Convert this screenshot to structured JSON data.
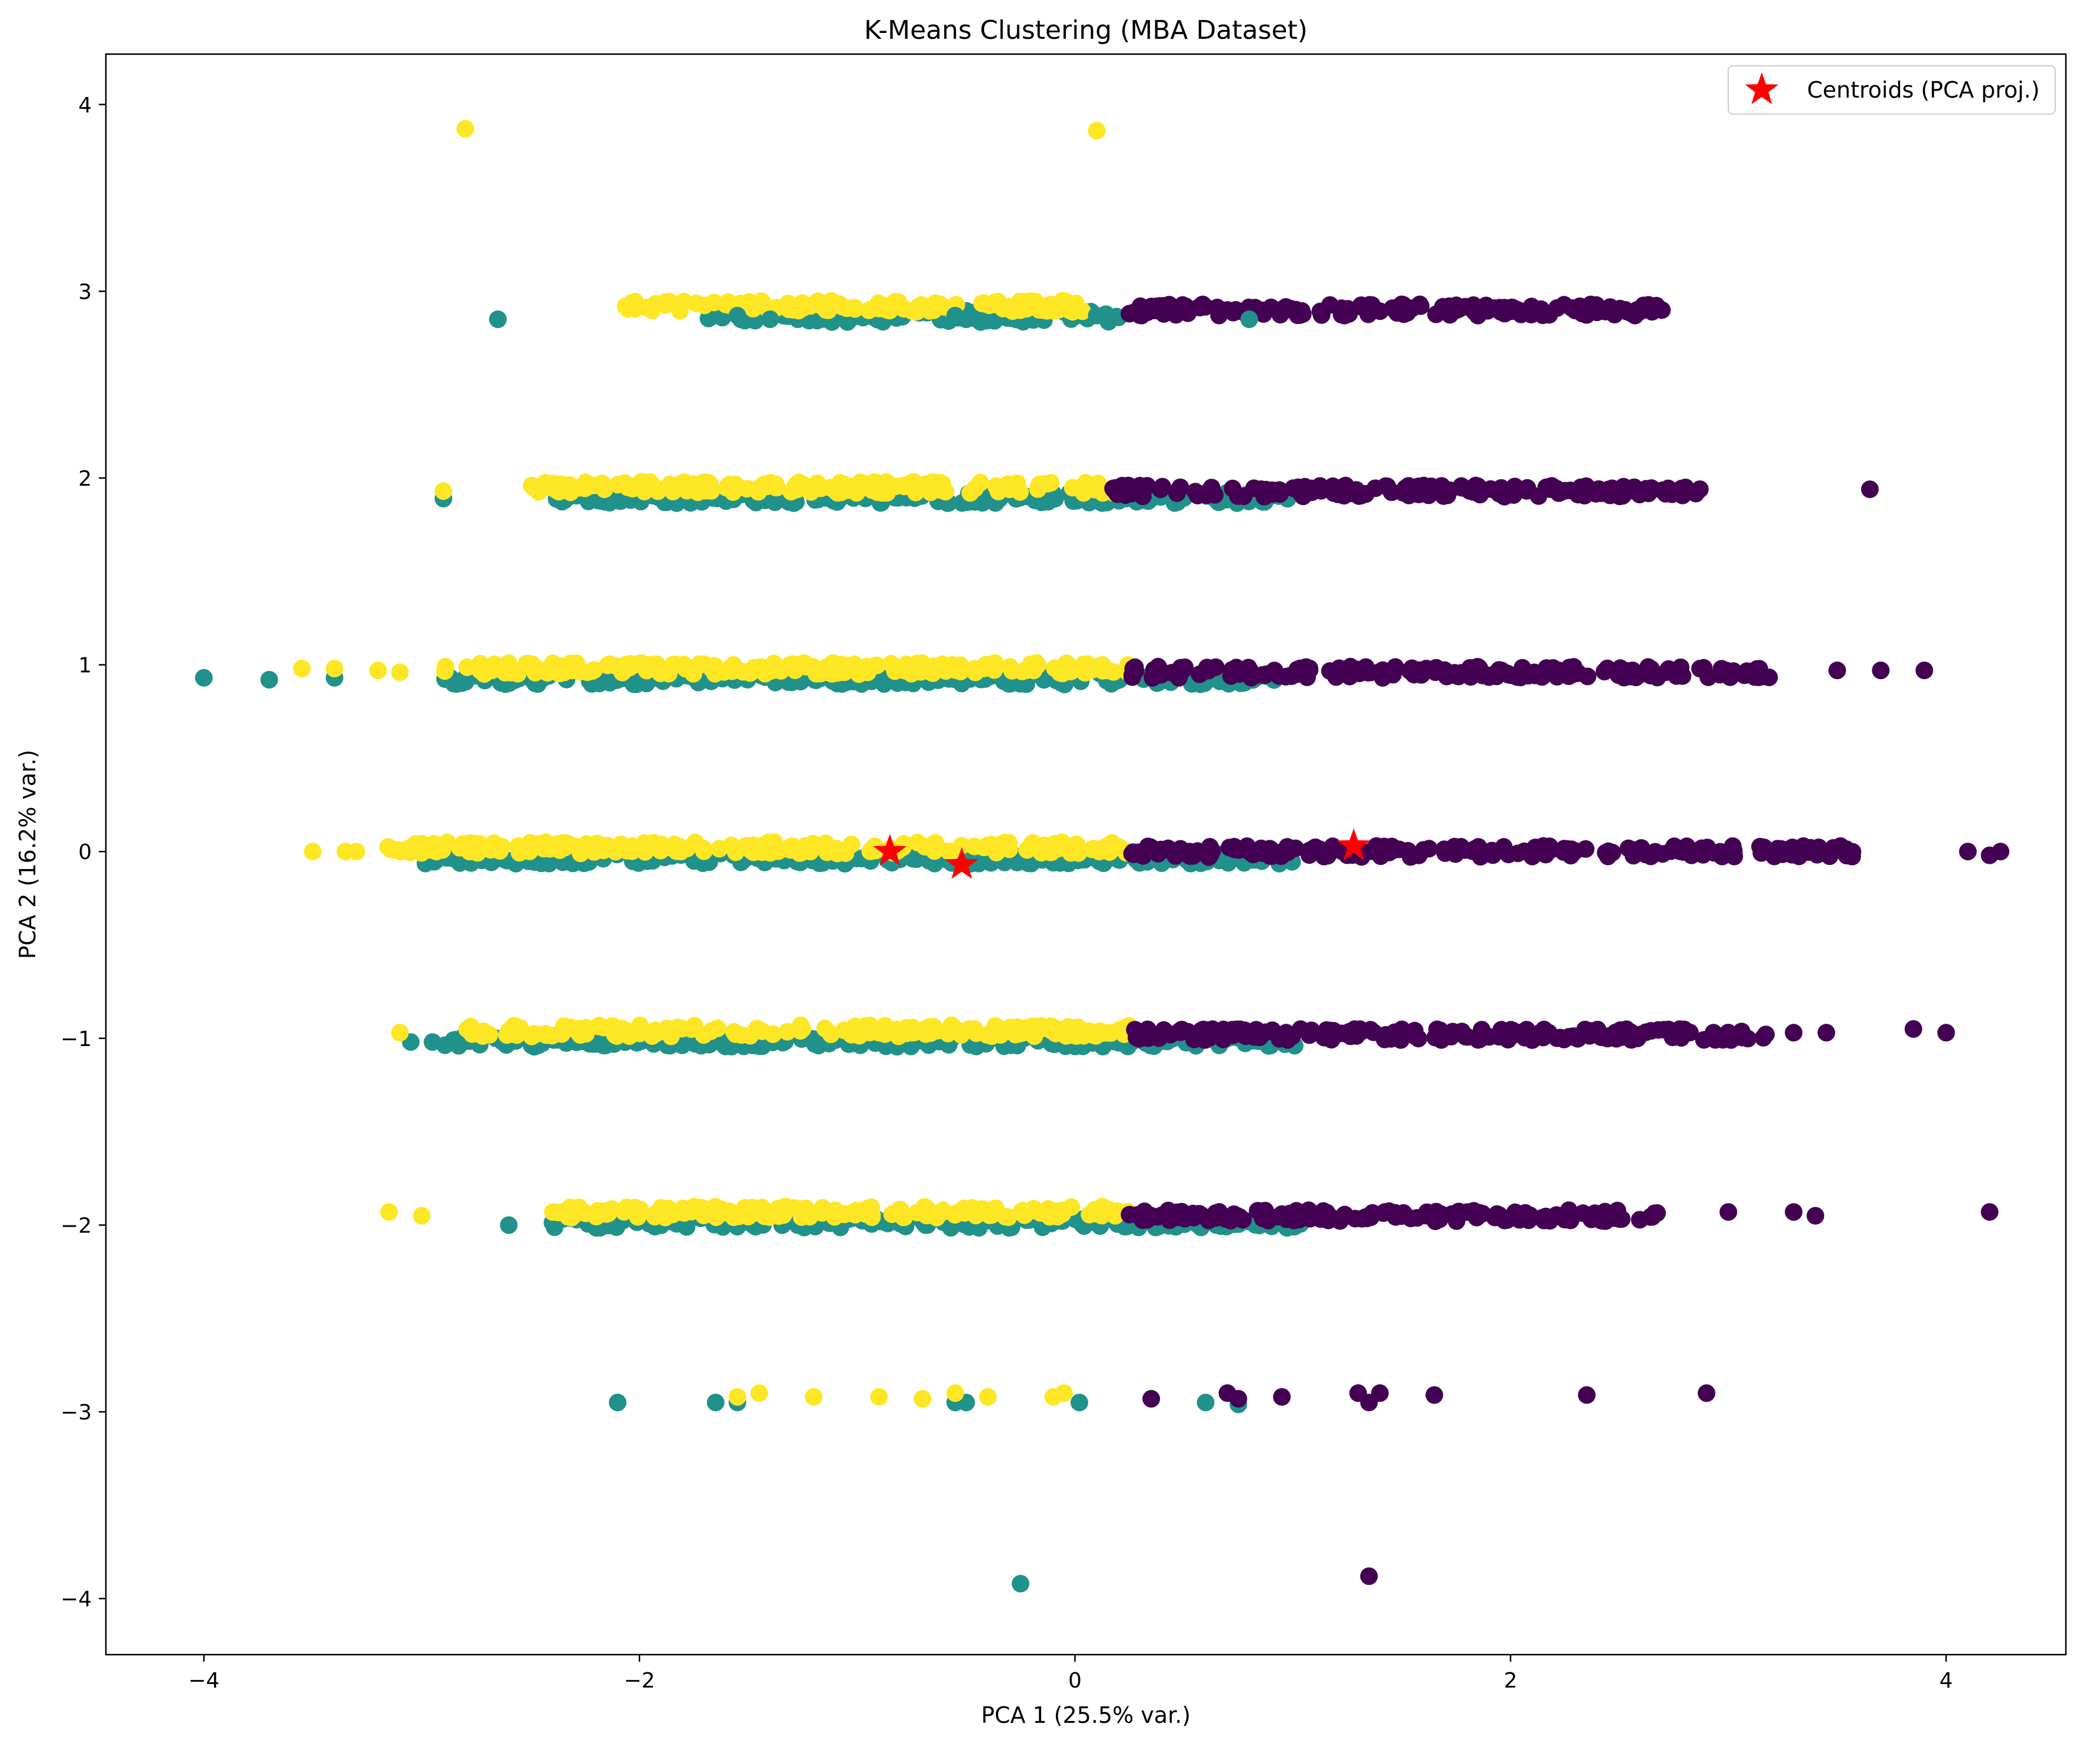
{
  "chart_data": {
    "type": "scatter",
    "title": "K-Means Clustering (MBA Dataset)",
    "xlabel": "PCA 1 (25.5% var.)",
    "ylabel": "PCA 2 (16.2% var.)",
    "xlim": [
      -4.45,
      4.55
    ],
    "ylim": [
      -4.3,
      4.27
    ],
    "xticks": [
      -4,
      -2,
      0,
      2,
      4
    ],
    "xtick_labels": [
      "−4",
      "−2",
      "0",
      "2",
      "4"
    ],
    "yticks": [
      -4,
      -3,
      -2,
      -1,
      0,
      1,
      2,
      3,
      4
    ],
    "ytick_labels": [
      "−4",
      "−3",
      "−2",
      "−1",
      "0",
      "1",
      "2",
      "3",
      "4"
    ],
    "grid": false,
    "legend": {
      "position": "top-right",
      "entries": [
        "Centroids (PCA proj.)"
      ]
    },
    "colors": {
      "cluster_0": "#440154",
      "cluster_1": "#21918c",
      "cluster_2": "#fde725",
      "centroid": "#ff0000"
    },
    "bands": [
      {
        "y": 2.9,
        "cluster_2": [
          -2.1,
          0.05
        ],
        "cluster_1": [
          -1.7,
          0.2
        ],
        "cluster_0": [
          0.25,
          2.7
        ]
      },
      {
        "y": 1.93,
        "cluster_2": [
          -2.5,
          0.25
        ],
        "cluster_1": [
          -2.4,
          1.0
        ],
        "cluster_0": [
          0.15,
          2.9
        ]
      },
      {
        "y": 0.96,
        "cluster_2": [
          -2.9,
          0.25
        ],
        "cluster_1": [
          -2.9,
          1.0
        ],
        "cluster_0": [
          0.25,
          3.2
        ]
      },
      {
        "y": 0.0,
        "cluster_2": [
          -3.2,
          0.25
        ],
        "cluster_1": [
          -3.0,
          1.0
        ],
        "cluster_0": [
          0.25,
          3.6
        ]
      },
      {
        "y": -0.98,
        "cluster_2": [
          -2.8,
          0.25
        ],
        "cluster_1": [
          -2.9,
          1.05
        ],
        "cluster_0": [
          0.25,
          3.2
        ]
      },
      {
        "y": -1.95,
        "cluster_2": [
          -2.4,
          0.25
        ],
        "cluster_1": [
          -2.4,
          1.05
        ],
        "cluster_0": [
          0.25,
          2.7
        ]
      }
    ],
    "points": {
      "cluster_2": [
        [
          -2.8,
          3.87
        ],
        [
          0.1,
          3.86
        ],
        [
          -2.9,
          1.93
        ],
        [
          -3.55,
          0.98
        ],
        [
          -3.4,
          0.98
        ],
        [
          -3.2,
          0.97
        ],
        [
          -3.1,
          0.96
        ],
        [
          -3.35,
          0.0
        ],
        [
          -3.3,
          0.0
        ],
        [
          -3.5,
          0.0
        ],
        [
          -3.1,
          0.0
        ],
        [
          -3.1,
          -0.97
        ],
        [
          -3.15,
          -1.93
        ],
        [
          -3.0,
          -1.95
        ],
        [
          -1.55,
          -2.92
        ],
        [
          -1.45,
          -2.9
        ],
        [
          -1.2,
          -2.92
        ],
        [
          -0.9,
          -2.92
        ],
        [
          -0.7,
          -2.93
        ],
        [
          -0.55,
          -2.9
        ],
        [
          -0.4,
          -2.92
        ],
        [
          -0.1,
          -2.92
        ],
        [
          -0.05,
          -2.9
        ]
      ],
      "cluster_1": [
        [
          -2.65,
          2.85
        ],
        [
          -1.55,
          2.87
        ],
        [
          -1.4,
          2.85
        ],
        [
          -0.55,
          2.87
        ],
        [
          -0.5,
          2.85
        ],
        [
          0.1,
          2.87
        ],
        [
          0.2,
          2.86
        ],
        [
          0.8,
          2.85
        ],
        [
          -2.9,
          1.89
        ],
        [
          -4.0,
          0.93
        ],
        [
          -3.7,
          0.92
        ],
        [
          -3.4,
          0.93
        ],
        [
          -2.95,
          -1.02
        ],
        [
          -3.05,
          -1.02
        ],
        [
          -2.6,
          -2.0
        ],
        [
          -2.1,
          -2.95
        ],
        [
          -1.65,
          -2.95
        ],
        [
          -1.55,
          -2.95
        ],
        [
          -0.55,
          -2.95
        ],
        [
          -0.5,
          -2.95
        ],
        [
          0.02,
          -2.95
        ],
        [
          0.6,
          -2.95
        ],
        [
          0.75,
          -2.96
        ],
        [
          -0.25,
          -3.92
        ]
      ],
      "cluster_0": [
        [
          0.25,
          2.88
        ],
        [
          0.3,
          2.92
        ],
        [
          0.4,
          2.92
        ],
        [
          0.7,
          2.9
        ],
        [
          0.95,
          2.9
        ],
        [
          1.5,
          2.93
        ],
        [
          1.85,
          2.87
        ],
        [
          1.9,
          2.9
        ],
        [
          2.1,
          2.89
        ],
        [
          2.65,
          2.89
        ],
        [
          3.65,
          1.94
        ],
        [
          3.5,
          0.97
        ],
        [
          3.7,
          0.97
        ],
        [
          3.9,
          0.97
        ],
        [
          4.1,
          0.0
        ],
        [
          4.2,
          -0.02
        ],
        [
          4.25,
          0.0
        ],
        [
          3.3,
          -0.97
        ],
        [
          3.45,
          -0.97
        ],
        [
          3.85,
          -0.95
        ],
        [
          4.0,
          -0.97
        ],
        [
          3.0,
          -1.93
        ],
        [
          3.3,
          -1.93
        ],
        [
          3.4,
          -1.95
        ],
        [
          4.2,
          -1.93
        ],
        [
          0.35,
          -2.93
        ],
        [
          0.7,
          -2.9
        ],
        [
          0.75,
          -2.93
        ],
        [
          0.95,
          -2.92
        ],
        [
          1.3,
          -2.9
        ],
        [
          1.35,
          -2.95
        ],
        [
          1.4,
          -2.9
        ],
        [
          1.65,
          -2.91
        ],
        [
          2.35,
          -2.91
        ],
        [
          2.9,
          -2.9
        ],
        [
          1.35,
          -3.88
        ]
      ]
    },
    "centroids": [
      [
        -0.85,
        0.0
      ],
      [
        -0.52,
        -0.07
      ],
      [
        1.28,
        0.03
      ]
    ]
  }
}
